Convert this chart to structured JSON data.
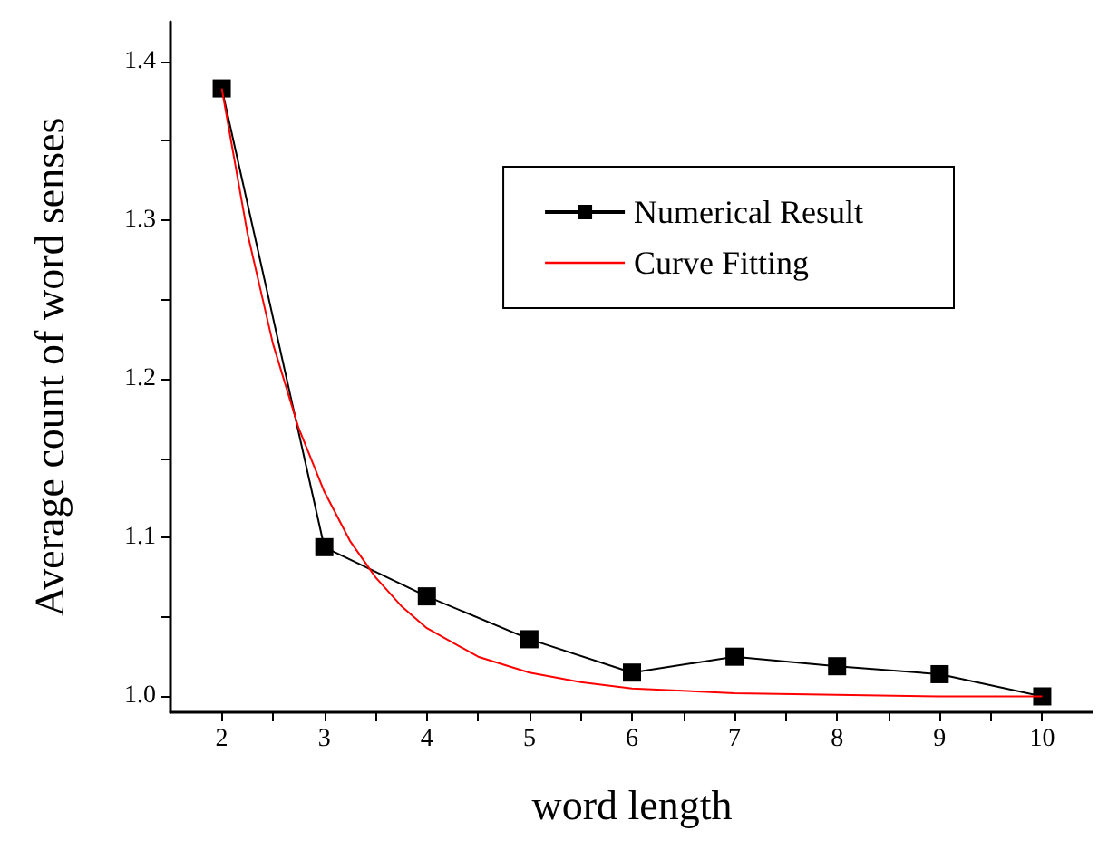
{
  "chart_data": {
    "type": "line",
    "xlabel": "word length",
    "ylabel": "Average count of word senses",
    "xlim": [
      1.5,
      10.5
    ],
    "ylim": [
      0.99,
      1.425
    ],
    "xticks": [
      2,
      3,
      4,
      5,
      6,
      7,
      8,
      9,
      10,
      {
        "value": 2.5,
        "label": null
      },
      {
        "value": 3.5,
        "label": null
      },
      {
        "value": 4.5,
        "label": null
      },
      {
        "value": 5.5,
        "label": null
      },
      {
        "value": 6.5,
        "label": null
      },
      {
        "value": 7.5,
        "label": null
      },
      {
        "value": 8.5,
        "label": null
      },
      {
        "value": 9.5,
        "label": null
      }
    ],
    "yticks": [
      {
        "value": 1.0,
        "label": "1.0"
      },
      1.1,
      1.2,
      1.3,
      1.4,
      {
        "value": 1.05,
        "label": null
      },
      {
        "value": 1.15,
        "label": null
      },
      {
        "value": 1.25,
        "label": null
      },
      {
        "value": 1.35,
        "label": null
      }
    ],
    "grid": false,
    "legend": "top right",
    "series": [
      {
        "name": "Numerical Result",
        "color": "#000000",
        "marker": "square",
        "x": [
          2,
          3,
          4,
          5,
          6,
          7,
          8,
          9,
          10
        ],
        "values": [
          1.383,
          1.094,
          1.063,
          1.036,
          1.015,
          1.025,
          1.019,
          1.014,
          1.0
        ]
      },
      {
        "name": "Curve Fitting",
        "color": "#ff0000",
        "marker": "none",
        "x": [
          2,
          2.25,
          2.5,
          2.75,
          3,
          3.25,
          3.5,
          3.75,
          4,
          4.5,
          5,
          5.5,
          6,
          7,
          8,
          9,
          10
        ],
        "values": [
          1.383,
          1.292,
          1.222,
          1.169,
          1.129,
          1.098,
          1.075,
          1.057,
          1.043,
          1.025,
          1.015,
          1.009,
          1.005,
          1.002,
          1.001,
          1.0,
          1.0
        ]
      }
    ]
  }
}
